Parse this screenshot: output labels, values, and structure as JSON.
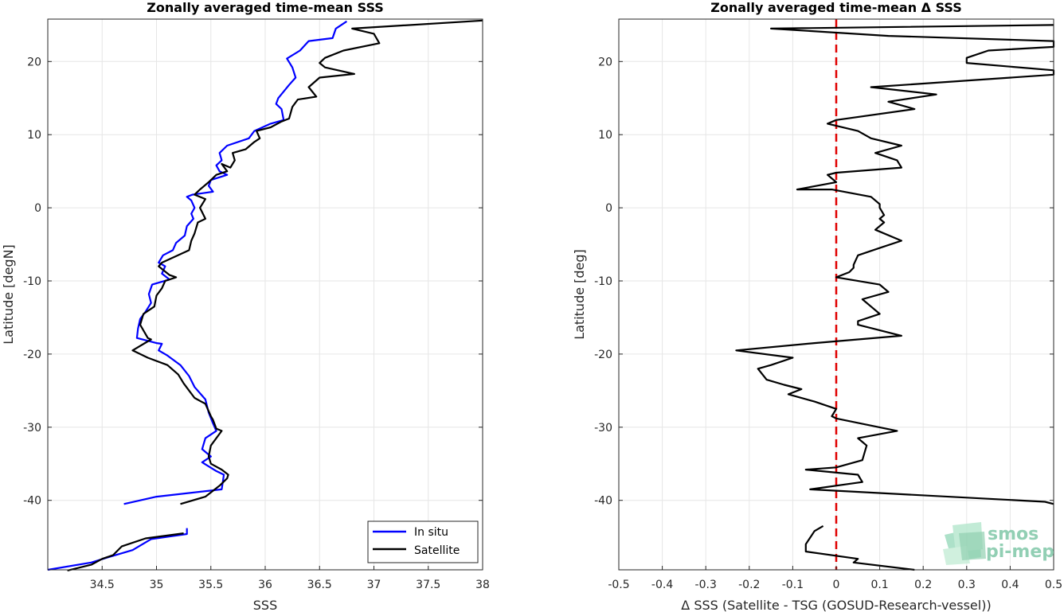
{
  "chart_data": [
    {
      "type": "line",
      "title": "Zonally averaged time-mean SSS",
      "xlabel": "SSS",
      "ylabel": "Latitude [degN]",
      "xlim": [
        34.0,
        38.0
      ],
      "ylim": [
        -49.5,
        25.8
      ],
      "xticks": [
        "34.5",
        "35",
        "35.5",
        "36",
        "36.5",
        "37",
        "37.5",
        "38"
      ],
      "yticks": [
        "20",
        "10",
        "0",
        "-10",
        "-20",
        "-30",
        "-40"
      ],
      "grid": true,
      "legend": "bottom-right",
      "series": [
        {
          "name": "In situ",
          "color": "#0000ff",
          "segments": [
            [
              [
                36.75,
                25.5
              ],
              [
                36.65,
                24.5
              ],
              [
                36.62,
                23.2
              ],
              [
                36.4,
                22.8
              ],
              [
                36.32,
                21.5
              ],
              [
                36.2,
                20.4
              ],
              [
                36.25,
                19.2
              ],
              [
                36.28,
                17.8
              ],
              [
                36.22,
                16.8
              ],
              [
                36.12,
                15.0
              ],
              [
                36.1,
                14.2
              ],
              [
                36.15,
                13.5
              ],
              [
                36.17,
                12.0
              ],
              [
                36.05,
                11.5
              ],
              [
                35.9,
                10.5
              ],
              [
                35.85,
                9.5
              ],
              [
                35.65,
                8.5
              ],
              [
                35.58,
                7.5
              ],
              [
                35.6,
                6.5
              ],
              [
                35.55,
                5.8
              ],
              [
                35.58,
                5.0
              ],
              [
                35.65,
                4.5
              ],
              [
                35.5,
                3.8
              ],
              [
                35.48,
                3.0
              ],
              [
                35.52,
                2.2
              ],
              [
                35.33,
                1.8
              ],
              [
                35.28,
                1.5
              ],
              [
                35.32,
                1.0
              ],
              [
                35.35,
                0.0
              ],
              [
                35.32,
                -0.8
              ],
              [
                35.34,
                -1.5
              ],
              [
                35.28,
                -2.5
              ],
              [
                35.26,
                -3.8
              ],
              [
                35.18,
                -4.8
              ],
              [
                35.15,
                -5.8
              ],
              [
                35.06,
                -6.5
              ],
              [
                35.02,
                -7.5
              ],
              [
                35.08,
                -8.0
              ],
              [
                35.05,
                -9.0
              ],
              [
                35.12,
                -9.8
              ],
              [
                34.96,
                -10.5
              ],
              [
                34.93,
                -11.8
              ],
              [
                34.95,
                -13.0
              ],
              [
                34.9,
                -14.2
              ],
              [
                34.85,
                -15.2
              ],
              [
                34.83,
                -16.5
              ],
              [
                34.82,
                -17.8
              ],
              [
                35.0,
                -18.5
              ],
              [
                35.05,
                -18.6
              ],
              [
                35.02,
                -19.5
              ],
              [
                35.1,
                -20.2
              ],
              [
                35.22,
                -21.5
              ],
              [
                35.3,
                -23.0
              ],
              [
                35.35,
                -24.5
              ],
              [
                35.45,
                -26.2
              ],
              [
                35.48,
                -28.0
              ],
              [
                35.52,
                -29.5
              ],
              [
                35.55,
                -30.5
              ],
              [
                35.45,
                -31.5
              ],
              [
                35.42,
                -33.0
              ],
              [
                35.5,
                -34.0
              ],
              [
                35.42,
                -34.8
              ],
              [
                35.55,
                -36.0
              ],
              [
                35.62,
                -36.5
              ],
              [
                35.6,
                -38.5
              ],
              [
                35.0,
                -39.5
              ],
              [
                34.7,
                -40.5
              ]
            ],
            [
              [
                35.28,
                -43.8
              ],
              [
                35.28,
                -44.6
              ],
              [
                34.95,
                -45.3
              ],
              [
                34.78,
                -46.8
              ],
              [
                34.55,
                -47.8
              ],
              [
                34.4,
                -48.5
              ],
              [
                34.0,
                -49.5
              ]
            ]
          ]
        },
        {
          "name": "Satellite",
          "color": "#000000",
          "segments": [
            [
              [
                38.0,
                25.6
              ],
              [
                36.8,
                24.5
              ],
              [
                37.0,
                23.8
              ],
              [
                37.05,
                22.5
              ],
              [
                36.72,
                21.5
              ],
              [
                36.55,
                20.5
              ],
              [
                36.5,
                19.8
              ],
              [
                36.55,
                19.2
              ],
              [
                36.82,
                18.3
              ],
              [
                36.5,
                17.8
              ],
              [
                36.4,
                16.5
              ],
              [
                36.47,
                15.2
              ],
              [
                36.3,
                14.8
              ],
              [
                36.25,
                13.8
              ],
              [
                36.22,
                12.2
              ],
              [
                36.15,
                11.8
              ],
              [
                36.05,
                11.0
              ],
              [
                35.92,
                10.5
              ],
              [
                35.95,
                9.5
              ],
              [
                35.9,
                9.0
              ],
              [
                35.82,
                8.0
              ],
              [
                35.7,
                7.5
              ],
              [
                35.72,
                6.5
              ],
              [
                35.68,
                5.5
              ],
              [
                35.6,
                6.0
              ],
              [
                35.65,
                5.0
              ],
              [
                35.55,
                4.5
              ],
              [
                35.48,
                3.5
              ],
              [
                35.4,
                2.5
              ],
              [
                35.35,
                1.8
              ],
              [
                35.45,
                1.2
              ],
              [
                35.4,
                0.0
              ],
              [
                35.45,
                -1.5
              ],
              [
                35.38,
                -2.0
              ],
              [
                35.35,
                -3.5
              ],
              [
                35.32,
                -4.5
              ],
              [
                35.3,
                -5.8
              ],
              [
                35.05,
                -7.5
              ],
              [
                35.02,
                -8.0
              ],
              [
                35.12,
                -9.2
              ],
              [
                35.18,
                -9.5
              ],
              [
                35.08,
                -10.0
              ],
              [
                35.05,
                -11.0
              ],
              [
                35.0,
                -12.0
              ],
              [
                34.98,
                -13.5
              ],
              [
                34.88,
                -14.5
              ],
              [
                34.85,
                -16.0
              ],
              [
                34.92,
                -17.8
              ],
              [
                34.95,
                -18.0
              ],
              [
                34.78,
                -19.5
              ],
              [
                34.92,
                -20.5
              ],
              [
                35.1,
                -21.5
              ],
              [
                35.2,
                -22.8
              ],
              [
                35.25,
                -24.0
              ],
              [
                35.3,
                -25.0
              ],
              [
                35.35,
                -26.0
              ],
              [
                35.45,
                -26.8
              ],
              [
                35.5,
                -28.5
              ],
              [
                35.52,
                -29.0
              ],
              [
                35.55,
                -30.2
              ],
              [
                35.6,
                -30.5
              ],
              [
                35.5,
                -32.5
              ],
              [
                35.48,
                -34.0
              ],
              [
                35.5,
                -35.0
              ],
              [
                35.6,
                -35.8
              ],
              [
                35.66,
                -36.5
              ],
              [
                35.65,
                -37.0
              ],
              [
                35.58,
                -38.0
              ],
              [
                35.45,
                -39.5
              ],
              [
                35.22,
                -40.5
              ]
            ],
            [
              [
                35.25,
                -44.5
              ],
              [
                34.9,
                -45.2
              ],
              [
                34.68,
                -46.3
              ],
              [
                34.6,
                -47.5
              ],
              [
                34.5,
                -48.0
              ],
              [
                34.4,
                -48.8
              ],
              [
                34.18,
                -49.6
              ]
            ]
          ]
        }
      ]
    },
    {
      "type": "line",
      "title": "Zonally averaged time-mean Δ SSS",
      "xlabel": "Δ SSS (Satellite - TSG (GOSUD-Research-vessel))",
      "ylabel": "Latitude [deg]",
      "xlim": [
        -0.5,
        0.5
      ],
      "ylim": [
        -49.5,
        25.8
      ],
      "xticks": [
        "-0.5",
        "-0.4",
        "-0.3",
        "-0.2",
        "-0.1",
        "0",
        "0.1",
        "0.2",
        "0.3",
        "0.4",
        "0.5"
      ],
      "yticks": [
        "20",
        "10",
        "0",
        "-10",
        "-20",
        "-30",
        "-40"
      ],
      "grid": true,
      "zero_line": {
        "x": 0,
        "color": "#e00000",
        "style": "dashed"
      },
      "series": [
        {
          "name": "",
          "color": "#000000",
          "segments": [
            [
              [
                0.5,
                25.0
              ],
              [
                -0.15,
                24.5
              ],
              [
                0.12,
                23.5
              ],
              [
                0.5,
                22.8
              ],
              [
                0.5,
                22.0
              ],
              [
                0.35,
                21.5
              ],
              [
                0.3,
                20.5
              ],
              [
                0.3,
                19.8
              ],
              [
                0.5,
                18.8
              ],
              [
                0.5,
                18.2
              ],
              [
                0.08,
                16.5
              ],
              [
                0.23,
                15.5
              ],
              [
                0.12,
                14.5
              ],
              [
                0.18,
                13.5
              ],
              [
                0.0,
                12.0
              ],
              [
                -0.02,
                11.5
              ],
              [
                0.05,
                10.5
              ],
              [
                0.08,
                9.5
              ],
              [
                0.15,
                8.5
              ],
              [
                0.09,
                7.5
              ],
              [
                0.14,
                6.5
              ],
              [
                0.15,
                5.5
              ],
              [
                0.0,
                4.8
              ],
              [
                -0.02,
                4.5
              ],
              [
                0.0,
                3.5
              ],
              [
                -0.09,
                2.5
              ],
              [
                -0.01,
                2.5
              ],
              [
                0.08,
                1.5
              ],
              [
                0.1,
                0.5
              ],
              [
                0.1,
                0.0
              ],
              [
                0.11,
                -1.0
              ],
              [
                0.1,
                -1.5
              ],
              [
                0.11,
                -2.0
              ],
              [
                0.09,
                -3.0
              ],
              [
                0.15,
                -4.5
              ],
              [
                0.1,
                -5.5
              ],
              [
                0.05,
                -6.5
              ],
              [
                0.04,
                -7.8
              ],
              [
                0.04,
                -8.2
              ],
              [
                0.03,
                -8.8
              ],
              [
                -0.0,
                -9.5
              ],
              [
                0.1,
                -10.5
              ],
              [
                0.12,
                -11.5
              ],
              [
                0.06,
                -12.5
              ],
              [
                0.08,
                -13.5
              ],
              [
                0.1,
                -14.5
              ],
              [
                0.05,
                -15.5
              ],
              [
                0.05,
                -16.0
              ],
              [
                0.15,
                -17.5
              ],
              [
                -0.05,
                -18.5
              ],
              [
                -0.23,
                -19.5
              ],
              [
                -0.1,
                -20.5
              ],
              [
                -0.15,
                -21.5
              ],
              [
                -0.18,
                -22.0
              ],
              [
                -0.16,
                -23.5
              ],
              [
                -0.12,
                -24.2
              ],
              [
                -0.08,
                -24.8
              ],
              [
                -0.11,
                -25.5
              ],
              [
                -0.05,
                -26.5
              ],
              [
                0.0,
                -27.5
              ],
              [
                -0.01,
                -28.5
              ],
              [
                0.0,
                -28.8
              ],
              [
                0.14,
                -30.5
              ],
              [
                0.05,
                -31.5
              ],
              [
                0.07,
                -32.5
              ],
              [
                0.06,
                -34.5
              ],
              [
                0.0,
                -35.5
              ],
              [
                -0.07,
                -35.8
              ],
              [
                0.05,
                -36.5
              ],
              [
                0.06,
                -37.5
              ],
              [
                -0.06,
                -38.5
              ],
              [
                0.48,
                -40.2
              ],
              [
                0.5,
                -40.5
              ]
            ],
            [
              [
                -0.03,
                -43.5
              ],
              [
                -0.05,
                -44.2
              ],
              [
                -0.07,
                -46.0
              ],
              [
                -0.07,
                -47.0
              ],
              [
                0.05,
                -48.0
              ],
              [
                0.04,
                -48.5
              ],
              [
                0.18,
                -49.5
              ]
            ]
          ]
        }
      ]
    }
  ],
  "logo": {
    "line1": "smos",
    "line2": "pi-mep",
    "icon": "smos-pimep-logo-icon"
  }
}
